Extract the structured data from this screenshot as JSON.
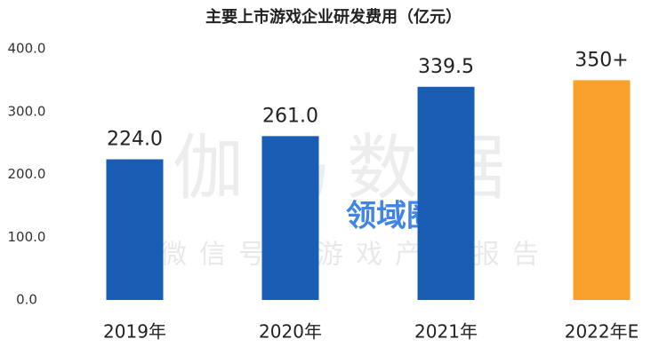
{
  "chart_data": {
    "type": "bar",
    "title": "主要上市游戏企业研发费用（亿元）",
    "categories": [
      "2019年",
      "2020年",
      "2021年",
      "2022年E"
    ],
    "values": [
      224.0,
      261.0,
      339.5,
      350
    ],
    "value_labels": [
      "224.0",
      "261.0",
      "339.5",
      "350+"
    ],
    "colors": [
      "#1a5db5",
      "#1a5db5",
      "#1a5db5",
      "#f9a12c"
    ],
    "ylim": [
      0,
      400
    ],
    "yticks": [
      {
        "value": 0,
        "label": "0.0"
      },
      {
        "value": 100,
        "label": "100.0"
      },
      {
        "value": 200,
        "label": "200.0"
      },
      {
        "value": 300,
        "label": "300.0"
      },
      {
        "value": 400,
        "label": "400.0"
      }
    ],
    "grid": false,
    "watermarks": [
      "伽马数据",
      "微信号：游戏产业报告",
      "领域圈"
    ]
  }
}
